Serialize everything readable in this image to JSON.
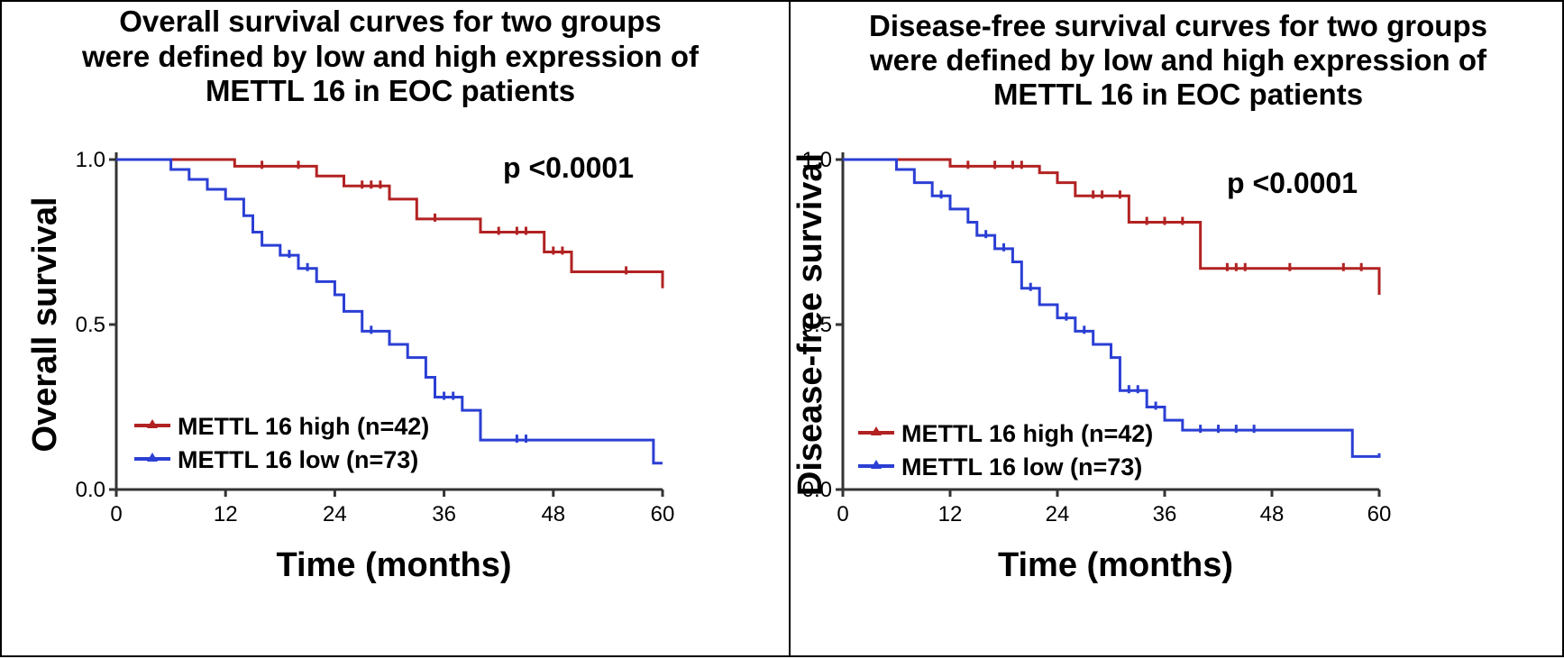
{
  "chart_data": [
    {
      "type": "line",
      "title": [
        "Overall survival curves for two groups",
        "were defined by low and high expression of",
        "METTL  16 in EOC patients"
      ],
      "xlabel": "Time (months)",
      "ylabel": "Overall survival",
      "xlim": [
        0,
        60
      ],
      "ylim": [
        0,
        1
      ],
      "x_ticks": [
        "0",
        "12",
        "24",
        "36",
        "48",
        "60"
      ],
      "y_ticks": [
        "0.0",
        "0.5",
        "1.0"
      ],
      "grid": false,
      "legend_position": "bottom-left",
      "annotation": "p <0.0001",
      "series": [
        {
          "name": "METTL 16 high (n=42)",
          "color": "#b22222",
          "x": [
            0,
            13,
            22,
            25,
            30,
            33,
            40,
            47,
            50,
            60
          ],
          "y": [
            1.0,
            0.98,
            0.95,
            0.92,
            0.88,
            0.82,
            0.78,
            0.72,
            0.66,
            0.61
          ],
          "censor_x": [
            16,
            20,
            27,
            28,
            29,
            35,
            42,
            44,
            45,
            48,
            49,
            56
          ],
          "censor_y": [
            0.98,
            0.98,
            0.92,
            0.92,
            0.92,
            0.82,
            0.78,
            0.78,
            0.78,
            0.72,
            0.72,
            0.66
          ]
        },
        {
          "name": "METTL 16 low (n=73)",
          "color": "#2b3fd4",
          "x": [
            0,
            6,
            8,
            10,
            12,
            14,
            15,
            16,
            18,
            20,
            22,
            24,
            25,
            27,
            30,
            32,
            34,
            35,
            38,
            40,
            59,
            60
          ],
          "y": [
            1.0,
            0.97,
            0.94,
            0.91,
            0.88,
            0.83,
            0.78,
            0.74,
            0.71,
            0.67,
            0.63,
            0.59,
            0.54,
            0.48,
            0.44,
            0.4,
            0.34,
            0.28,
            0.24,
            0.15,
            0.08,
            0.08
          ],
          "censor_x": [
            19,
            21,
            28,
            36,
            37,
            44,
            45
          ],
          "censor_y": [
            0.71,
            0.67,
            0.48,
            0.28,
            0.28,
            0.15,
            0.15
          ]
        }
      ]
    },
    {
      "type": "line",
      "title": [
        "Disease-free survival curves for two groups",
        "were defined by low and high expression of",
        "METTL  16 in EOC patients"
      ],
      "xlabel": "Time (months)",
      "ylabel": "Disease-free survival",
      "xlim": [
        0,
        60
      ],
      "ylim": [
        0,
        1
      ],
      "x_ticks": [
        "0",
        "12",
        "24",
        "36",
        "48",
        "60"
      ],
      "y_ticks": [
        "0.0",
        "0.5",
        "1.0"
      ],
      "grid": false,
      "legend_position": "bottom-left",
      "annotation": "p <0.0001",
      "series": [
        {
          "name": "METTL 16 high (n=42)",
          "color": "#b22222",
          "x": [
            0,
            12,
            22,
            24,
            26,
            32,
            40,
            60
          ],
          "y": [
            1.0,
            0.98,
            0.96,
            0.93,
            0.89,
            0.81,
            0.67,
            0.59
          ],
          "censor_x": [
            14,
            17,
            19,
            20,
            28,
            29,
            31,
            34,
            36,
            38,
            43,
            44,
            45,
            50,
            56,
            58
          ],
          "censor_y": [
            0.98,
            0.98,
            0.98,
            0.98,
            0.89,
            0.89,
            0.89,
            0.81,
            0.81,
            0.81,
            0.67,
            0.67,
            0.67,
            0.67,
            0.67,
            0.67
          ]
        },
        {
          "name": "METTL 16 low (n=73)",
          "color": "#2b3fd4",
          "x": [
            0,
            6,
            8,
            10,
            12,
            14,
            15,
            17,
            19,
            20,
            22,
            24,
            26,
            28,
            30,
            31,
            34,
            36,
            38,
            57,
            60
          ],
          "y": [
            1.0,
            0.97,
            0.93,
            0.89,
            0.85,
            0.81,
            0.77,
            0.73,
            0.69,
            0.61,
            0.56,
            0.52,
            0.48,
            0.44,
            0.4,
            0.3,
            0.25,
            0.21,
            0.18,
            0.1,
            0.11
          ],
          "censor_x": [
            11,
            16,
            18,
            21,
            25,
            27,
            32,
            33,
            35,
            40,
            42,
            44,
            46
          ],
          "censor_y": [
            0.89,
            0.77,
            0.73,
            0.61,
            0.52,
            0.48,
            0.3,
            0.3,
            0.25,
            0.18,
            0.18,
            0.18,
            0.18
          ]
        }
      ]
    }
  ]
}
